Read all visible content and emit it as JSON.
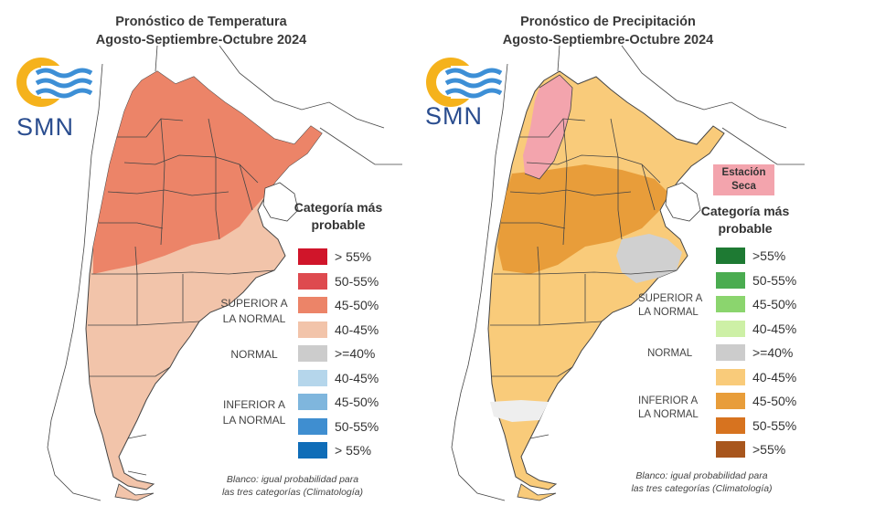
{
  "left_map": {
    "title_line1": "Pronóstico de Temperatura",
    "title_line2": "Agosto-Septiembre-Octubre 2024",
    "logo_text": "SMN",
    "legend_title_line1": "Categoría más",
    "legend_title_line2": "probable",
    "legend": [
      {
        "label": "> 55%",
        "color": "#d0152a"
      },
      {
        "label": "50-55%",
        "color": "#de4a4f"
      },
      {
        "label": "45-50%",
        "color": "#ec8468"
      },
      {
        "label": "40-45%",
        "color": "#f2c4aa"
      },
      {
        "label": ">=40%",
        "color": "#cccccc"
      },
      {
        "label": "40-45%",
        "color": "#b5d6eb"
      },
      {
        "label": "45-50%",
        "color": "#7fb6dd"
      },
      {
        "label": "50-55%",
        "color": "#3f8ed0"
      },
      {
        "label": "> 55%",
        "color": "#0f6db8"
      }
    ],
    "cat_superior_1": "SUPERIOR A",
    "cat_superior_2": "LA NORMAL",
    "cat_normal": "NORMAL",
    "cat_inferior_1": "INFERIOR A",
    "cat_inferior_2": "LA NORMAL",
    "note_line1": "Blanco: igual probabilidad para",
    "note_line2": "las tres categorías (Climatología)"
  },
  "right_map": {
    "title_line1": "Pronóstico de Precipitación",
    "title_line2": "Agosto-Septiembre-Octubre 2024",
    "logo_text": "SMN",
    "dry_station_line1": "Estación",
    "dry_station_line2": "Seca",
    "dry_color": "#f3a4ad",
    "legend_title_line1": "Categoría más",
    "legend_title_line2": "probable",
    "legend": [
      {
        "label": ">55%",
        "color": "#1e7a33"
      },
      {
        "label": "50-55%",
        "color": "#4aac50"
      },
      {
        "label": "45-50%",
        "color": "#8bd56e"
      },
      {
        "label": "40-45%",
        "color": "#cdf0a6"
      },
      {
        "label": ">=40%",
        "color": "#cccccc"
      },
      {
        "label": "40-45%",
        "color": "#f9cb7a"
      },
      {
        "label": "45-50%",
        "color": "#e89d3a"
      },
      {
        "label": "50-55%",
        "color": "#d7731f"
      },
      {
        "label": ">55%",
        "color": "#a8561d"
      }
    ],
    "cat_superior_1": "SUPERIOR A",
    "cat_superior_2": "LA NORMAL",
    "cat_normal": "NORMAL",
    "cat_inferior_1": "INFERIOR A",
    "cat_inferior_2": "LA NORMAL",
    "note_line1": "Blanco: igual probabilidad para",
    "note_line2": "las tres categorías (Climatología)"
  }
}
